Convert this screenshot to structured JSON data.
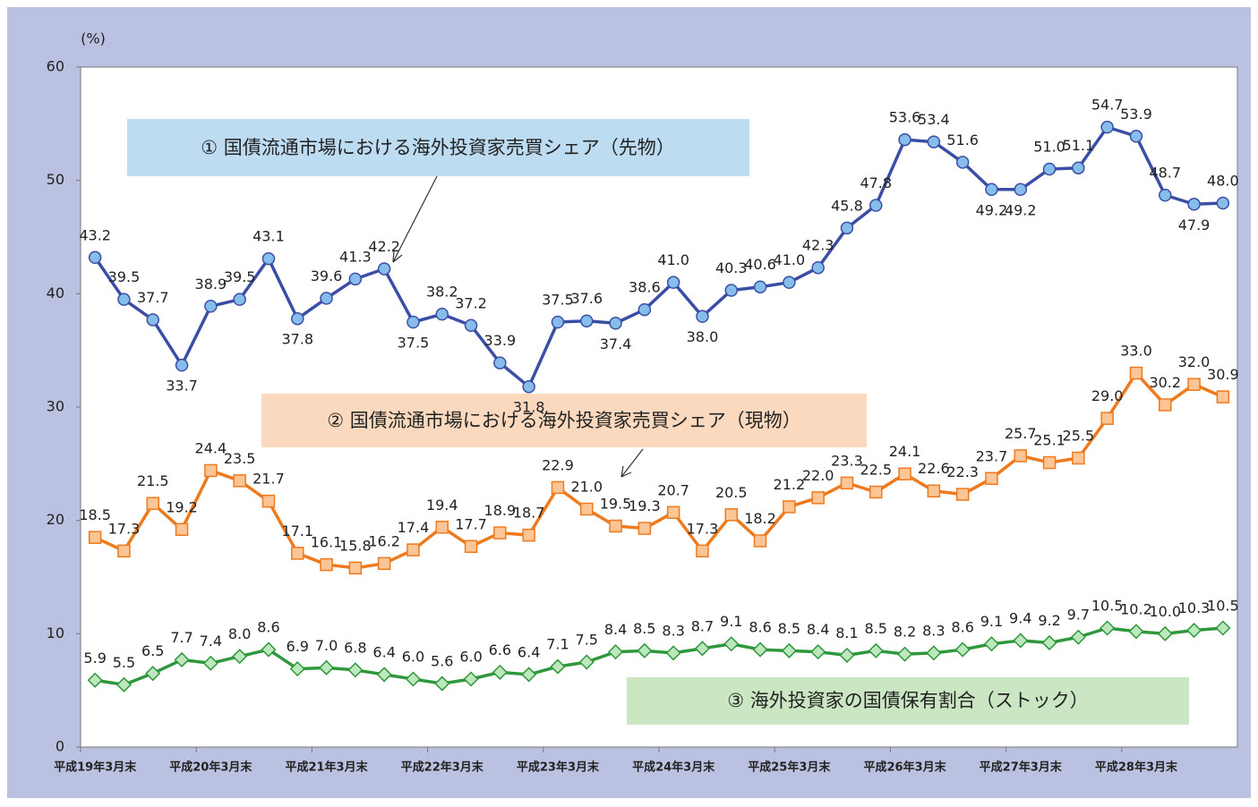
{
  "chart_data": {
    "type": "line",
    "y_unit_label": "(%)",
    "categories": [
      "平成19年3月末",
      null,
      null,
      null,
      "平成20年3月末",
      null,
      null,
      null,
      "平成21年3月末",
      null,
      null,
      null,
      "平成22年3月末",
      null,
      null,
      null,
      "平成23年3月末",
      null,
      null,
      null,
      "平成24年3月末",
      null,
      null,
      null,
      "平成25年3月末",
      null,
      null,
      null,
      "平成26年3月末",
      null,
      null,
      null,
      "平成27年3月末",
      null,
      null,
      null,
      "平成28年3月末",
      null,
      null,
      null
    ],
    "series": [
      {
        "name": "① 国債流通市場における海外投資家売買シェア（先物）",
        "color": "#3b4ea6",
        "marker": "circle",
        "marker_color": "#86bdea",
        "values": [
          43.2,
          39.5,
          37.7,
          33.7,
          38.9,
          39.5,
          43.1,
          37.8,
          39.6,
          41.3,
          42.2,
          37.5,
          38.2,
          37.2,
          33.9,
          31.8,
          37.5,
          37.6,
          37.4,
          38.6,
          41.0,
          38.0,
          40.3,
          40.6,
          41.0,
          42.3,
          45.8,
          47.8,
          53.6,
          53.4,
          51.6,
          49.2,
          49.2,
          51.0,
          51.1,
          54.7,
          53.9,
          48.7,
          47.9,
          48.0
        ],
        "value_labels": [
          "43.2",
          "39.5",
          "37.7",
          "33.7",
          "38.9",
          "39.5",
          "43.1",
          "37.8",
          "39.6",
          "41.3",
          "42.2",
          "37.5",
          "38.2",
          "37.2",
          "33.9",
          "31.8",
          "37.5",
          "37.6",
          "37.4",
          "38.6",
          "41.0",
          "38.0",
          "40.3",
          "40.6",
          "41.0",
          "42.3",
          "45.8",
          "47.8",
          "53.6",
          "53.4",
          "51.6",
          "49.2",
          "49.2",
          "51.0",
          "51.1",
          "54.7",
          "53.9",
          "48.7",
          "47.9",
          "48.0"
        ]
      },
      {
        "name": "② 国債流通市場における海外投資家売買シェア（現物）",
        "color": "#ee7a1e",
        "marker": "square",
        "marker_color": "#fbc596",
        "values": [
          18.5,
          17.3,
          21.5,
          19.2,
          24.4,
          23.5,
          21.7,
          17.1,
          16.1,
          15.8,
          16.2,
          17.4,
          19.4,
          17.7,
          18.9,
          18.7,
          22.9,
          21.0,
          19.5,
          19.3,
          20.7,
          17.3,
          20.5,
          18.2,
          21.2,
          22.0,
          23.3,
          22.5,
          24.1,
          22.6,
          22.3,
          23.7,
          25.7,
          25.1,
          25.5,
          29.0,
          33.0,
          30.2,
          32.0,
          30.9
        ],
        "value_labels": [
          "18.5",
          "17.3",
          "21.5",
          "19.2",
          "24.4",
          "23.5",
          "21.7",
          "17.1",
          "16.1",
          "15.8",
          "16.2",
          "17.4",
          "19.4",
          "17.7",
          "18.9",
          "18.7",
          "22.9",
          "21.0",
          "19.5",
          "19.3",
          "20.7",
          "17.3",
          "20.5",
          "18.2",
          "21.2",
          "22.0",
          "23.3",
          "22.5",
          "24.1",
          "22.6",
          "22.3",
          "23.7",
          "25.7",
          "25.1",
          "25.5",
          "29.0",
          "33.0",
          "30.2",
          "32.0",
          "30.9"
        ]
      },
      {
        "name": "③ 海外投資家の国債保有割合（ストック）",
        "color": "#2f973c",
        "marker": "diamond",
        "marker_color": "#bde8bd",
        "values": [
          5.9,
          5.5,
          6.5,
          7.7,
          7.4,
          8.0,
          8.6,
          6.9,
          7.0,
          6.8,
          6.4,
          6.0,
          5.6,
          6.0,
          6.6,
          6.4,
          7.1,
          7.5,
          8.4,
          8.5,
          8.3,
          8.7,
          9.1,
          8.6,
          8.5,
          8.4,
          8.1,
          8.5,
          8.2,
          8.3,
          8.6,
          9.1,
          9.4,
          9.2,
          9.7,
          10.5,
          10.2,
          10.0,
          10.3,
          10.5
        ],
        "value_labels": [
          "5.9",
          "5.5",
          "6.5",
          "7.7",
          "7.4",
          "8.0",
          "8.6",
          "6.9",
          "7.0",
          "6.8",
          "6.4",
          "6.0",
          "5.6",
          "6.0",
          "6.6",
          "6.4",
          "7.1",
          "7.5",
          "8.4",
          "8.5",
          "8.3",
          "8.7",
          "9.1",
          "8.6",
          "8.5",
          "8.4",
          "8.1",
          "8.5",
          "8.2",
          "8.3",
          "8.6",
          "9.1",
          "9.4",
          "9.2",
          "9.7",
          "10.5",
          "10.2",
          "10.0",
          "10.3",
          "10.5"
        ]
      }
    ],
    "ylim": [
      0,
      60
    ],
    "yticks": [
      0,
      10,
      20,
      30,
      40,
      50,
      60
    ],
    "grid": false
  }
}
